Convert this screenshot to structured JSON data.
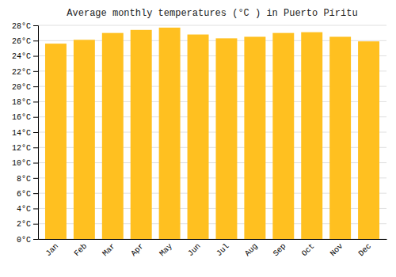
{
  "chart_data": {
    "type": "bar",
    "title": "Average monthly temperatures (°C ) in Puerto Píritu",
    "categories": [
      "Jan",
      "Feb",
      "Mar",
      "Apr",
      "May",
      "Jun",
      "Jul",
      "Aug",
      "Sep",
      "Oct",
      "Nov",
      "Dec"
    ],
    "values": [
      25.6,
      26.1,
      27.0,
      27.4,
      27.7,
      26.8,
      26.3,
      26.5,
      27.0,
      27.1,
      26.5,
      25.9
    ],
    "color": "#FFC020",
    "ylim": [
      0,
      28
    ],
    "yticks": [
      {
        "value": 0,
        "label": "0°C"
      },
      {
        "value": 2,
        "label": "2°C"
      },
      {
        "value": 4,
        "label": "4°C"
      },
      {
        "value": 6,
        "label": "6°C"
      },
      {
        "value": 8,
        "label": "8°C"
      },
      {
        "value": 10,
        "label": "10°C"
      },
      {
        "value": 12,
        "label": "12°C"
      },
      {
        "value": 14,
        "label": "14°C"
      },
      {
        "value": 16,
        "label": "16°C"
      },
      {
        "value": 18,
        "label": "18°C"
      },
      {
        "value": 20,
        "label": "20°C"
      },
      {
        "value": 22,
        "label": "22°C"
      },
      {
        "value": 24,
        "label": "24°C"
      },
      {
        "value": 26,
        "label": "26°C"
      },
      {
        "value": 28,
        "label": "28°C"
      }
    ],
    "grid": true
  }
}
